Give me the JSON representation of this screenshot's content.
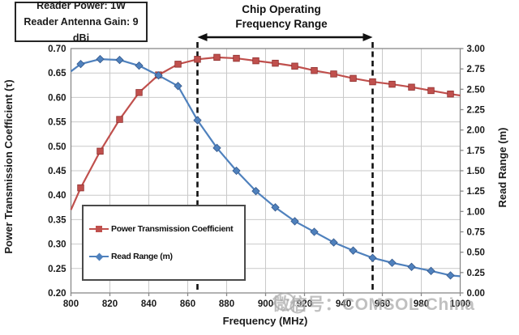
{
  "info_box": {
    "line1": "Reader Power: 1W",
    "line2": "Reader Antenna Gain: 9 dBi"
  },
  "watermark": {
    "text": "微信号：COMSOL-China",
    "icon": "wechat-logo"
  },
  "chart_data": {
    "type": "line",
    "x_label": "Frequency (MHz)",
    "x_range": [
      800,
      1000
    ],
    "x_ticks": [
      800,
      820,
      840,
      860,
      880,
      900,
      920,
      940,
      960,
      980,
      1000
    ],
    "left_axis": {
      "label": "Power Transmission Coefficient (τ)",
      "range": [
        0.2,
        0.7
      ],
      "ticks": [
        0.2,
        0.25,
        0.3,
        0.35,
        0.4,
        0.45,
        0.5,
        0.55,
        0.6,
        0.65,
        0.7
      ]
    },
    "right_axis": {
      "label": "Read Range (m)",
      "range": [
        0.0,
        3.0
      ],
      "ticks": [
        0.0,
        0.25,
        0.5,
        0.75,
        1.0,
        1.25,
        1.5,
        1.75,
        2.0,
        2.25,
        2.5,
        2.75,
        3.0
      ]
    },
    "grid": true,
    "legend_position": "inside-lower-left",
    "annotation": {
      "line1": "Chip Operating",
      "line2": "Frequency Range",
      "range_mhz": [
        865,
        955
      ],
      "line_style": "dashed-black",
      "arrow": "double-headed"
    },
    "colors": {
      "series1": "#C0504D",
      "series2": "#4F81BD",
      "gridline": "#C9C9C9",
      "plot_border": "#898989",
      "annotation_line": "#111111"
    },
    "series": [
      {
        "name": "Power Transmission Coefficient",
        "axis": "left",
        "color": "#C0504D",
        "marker": "square",
        "x": [
          800,
          805,
          815,
          825,
          835,
          845,
          855,
          865,
          875,
          885,
          895,
          905,
          915,
          925,
          935,
          945,
          955,
          965,
          975,
          985,
          995,
          1000
        ],
        "y": [
          0.37,
          0.415,
          0.49,
          0.555,
          0.61,
          0.646,
          0.668,
          0.678,
          0.682,
          0.68,
          0.675,
          0.67,
          0.664,
          0.655,
          0.648,
          0.639,
          0.632,
          0.627,
          0.621,
          0.614,
          0.607,
          0.604
        ]
      },
      {
        "name": "Read Range (m)",
        "axis": "right",
        "color": "#4F81BD",
        "marker": "diamond",
        "x": [
          800,
          805,
          815,
          825,
          835,
          845,
          855,
          865,
          875,
          885,
          895,
          905,
          915,
          925,
          935,
          945,
          955,
          965,
          975,
          985,
          995,
          1000
        ],
        "y": [
          2.72,
          2.81,
          2.87,
          2.86,
          2.79,
          2.67,
          2.54,
          2.12,
          1.78,
          1.5,
          1.25,
          1.05,
          0.88,
          0.75,
          0.62,
          0.52,
          0.43,
          0.37,
          0.32,
          0.27,
          0.215,
          0.205
        ]
      }
    ]
  }
}
